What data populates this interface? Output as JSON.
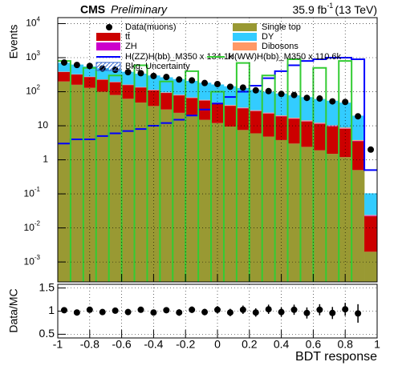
{
  "chart_data": [
    {
      "type": "histogram",
      "stacked": true,
      "log_y": true,
      "grid": true,
      "title": "CMS",
      "subtitle": "Preliminary",
      "lumi_text": "35.9 fb",
      "lumi_sup": "-1",
      "lumi_energy": "(13 TeV)",
      "ylabel": "Events",
      "xlim": [
        -1,
        1
      ],
      "ylim": [
        0.00026,
        15000
      ],
      "yticks": [
        {
          "value": 0.001,
          "label": "10",
          "sup": "-3"
        },
        {
          "value": 0.01,
          "label": "10",
          "sup": "-2"
        },
        {
          "value": 0.1,
          "label": "10",
          "sup": "-1"
        },
        1,
        10,
        {
          "value": 100,
          "label": "10",
          "sup": "2"
        },
        {
          "value": 1000,
          "label": "10",
          "sup": "3"
        },
        {
          "value": 10000,
          "label": "10",
          "sup": "4"
        }
      ],
      "bins": [
        -1,
        -0.92,
        -0.84,
        -0.76,
        -0.68,
        -0.6,
        -0.52,
        -0.44,
        -0.36,
        -0.28,
        -0.2,
        -0.12,
        -0.04,
        0.04,
        0.12,
        0.2,
        0.28,
        0.36,
        0.44,
        0.52,
        0.6,
        0.68,
        0.76,
        0.84,
        0.92,
        1
      ],
      "series": [
        {
          "name": "Single top",
          "color": "#999933",
          "values": [
            200,
            160,
            130,
            100,
            80,
            62,
            48,
            38,
            30,
            24,
            19,
            15,
            12,
            9.5,
            7.5,
            6,
            4.8,
            3.8,
            3,
            2.4,
            1.9,
            1.5,
            1.2,
            0.5,
            0.002
          ]
        },
        {
          "name": "tt̄",
          "color": "#cc0000",
          "values": [
            180,
            160,
            140,
            125,
            110,
            95,
            85,
            72,
            62,
            54,
            46,
            40,
            34,
            29,
            25,
            21,
            18,
            15,
            13,
            11,
            9.5,
            8,
            7,
            3,
            0.02
          ]
        },
        {
          "name": "ZH",
          "color": "#cc00cc",
          "values": [
            2,
            2,
            1.8,
            1.6,
            1.5,
            1.4,
            1.3,
            1.2,
            1.1,
            1,
            0.9,
            0.8,
            0.7,
            0.6,
            0.6,
            0.5,
            0.5,
            0.4,
            0.4,
            0.3,
            0.3,
            0.3,
            0.2,
            0.1,
            0.001
          ]
        },
        {
          "name": "Dibosons",
          "color": "#ff9966",
          "values": [
            6,
            5.5,
            5,
            4.5,
            4,
            3.6,
            3.2,
            2.8,
            2.5,
            2.2,
            2,
            1.8,
            1.6,
            1.4,
            1.2,
            1.1,
            1,
            0.9,
            0.8,
            0.7,
            0.6,
            0.5,
            0.5,
            0.2,
            0.001
          ]
        },
        {
          "name": "DY",
          "color": "#33ccff",
          "values": [
            320,
            300,
            278,
            259,
            238,
            222,
            202,
            186,
            170,
            154,
            140,
            126,
            115,
            104,
            94,
            84,
            76,
            68,
            61,
            55,
            49,
            44,
            39,
            16,
            0.08
          ]
        }
      ],
      "data": {
        "name": "Data(muons)",
        "color": "#000000",
        "values": [
          720,
          610,
          570,
          480,
          440,
          375,
          350,
          290,
          270,
          228,
          215,
          180,
          168,
          140,
          132,
          110,
          104,
          86,
          80,
          66,
          63,
          52,
          50,
          19,
          2
        ]
      },
      "signals": [
        {
          "name": "H(ZZ)H(bb)_M350 x 134.1k",
          "color": "#0000ff",
          "values": [
            3,
            4,
            4,
            5,
            6,
            7,
            8,
            10,
            12,
            15,
            20,
            30,
            45,
            70,
            100,
            150,
            250,
            400,
            600,
            800,
            900,
            1000,
            1000,
            900,
            0.5
          ]
        },
        {
          "name": "H(WW)H(bb)_M350 x 110.6k",
          "color": "#33cc33",
          "values": [
            800,
            0.0001,
            500,
            0.0001,
            300,
            0.0001,
            600,
            0.0001,
            200,
            0.0001,
            400,
            0.0001,
            100,
            0.0001,
            700,
            0.0001,
            300,
            0.0001,
            900,
            0.0001,
            500,
            0.0001,
            800,
            0.0001,
            0.0001
          ]
        }
      ],
      "uncertainty_name": "Bkg. Uncertainty"
    },
    {
      "type": "errorbar",
      "grid": true,
      "ylabel": "Data/MC",
      "xlabel": "BDT response",
      "xlim": [
        -1,
        1
      ],
      "xticks": [
        -1,
        -0.8,
        -0.6,
        -0.4,
        -0.2,
        0,
        0.2,
        0.4,
        0.6,
        0.8,
        1
      ],
      "ylim": [
        0.42,
        1.58
      ],
      "yticks": [
        0.5,
        1,
        1.5
      ],
      "x": [
        -0.96,
        -0.88,
        -0.8,
        -0.72,
        -0.64,
        -0.56,
        -0.48,
        -0.4,
        -0.32,
        -0.24,
        -0.16,
        -0.08,
        0,
        0.08,
        0.16,
        0.24,
        0.32,
        0.4,
        0.48,
        0.56,
        0.64,
        0.72,
        0.8,
        0.88,
        0.96
      ],
      "values": [
        1.02,
        0.97,
        1.03,
        0.98,
        1.01,
        0.98,
        1.03,
        0.97,
        1.02,
        0.97,
        1.03,
        0.98,
        1.03,
        0.97,
        1.03,
        0.97,
        1.04,
        0.98,
        1.03,
        0.96,
        1.03,
        0.96,
        1.04,
        0.95,
        null
      ],
      "errors": [
        0.04,
        0.04,
        0.04,
        0.05,
        0.05,
        0.05,
        0.05,
        0.06,
        0.06,
        0.07,
        0.07,
        0.07,
        0.08,
        0.08,
        0.09,
        0.09,
        0.1,
        0.1,
        0.11,
        0.12,
        0.12,
        0.13,
        0.14,
        0.2,
        null
      ]
    }
  ]
}
